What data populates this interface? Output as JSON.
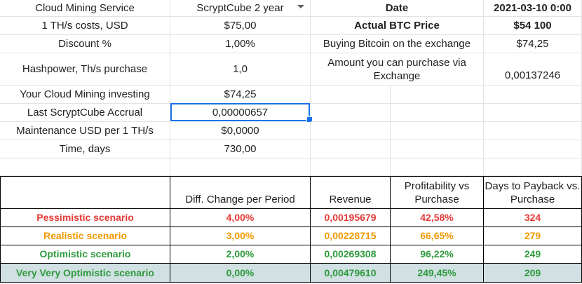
{
  "colors": {
    "pessimistic": "#e53935",
    "realistic": "#f29900",
    "optimistic": "#2e9a3c",
    "highlight_row": "#d0e0e3",
    "selection": "#1a73e8"
  },
  "left_table": [
    {
      "label": "Cloud Mining Service",
      "value": "ScryptCube 2 year",
      "dropdown": true
    },
    {
      "label": "1 TH/s costs, USD",
      "value": "$75,00"
    },
    {
      "label": "Discount %",
      "value": "1,00%"
    },
    {
      "label": "Hashpower, Th/s purchase",
      "value": "1,0"
    },
    {
      "label": "Your Cloud Mining investing",
      "value": "$74,25"
    },
    {
      "label": "Last ScryptCube Accrual",
      "value": "0,00000657",
      "selected": true
    },
    {
      "label": "Maintenance USD per 1 TH/s",
      "value": "$0,0000"
    },
    {
      "label": "Time, days",
      "value": "730,00"
    }
  ],
  "right_table": [
    {
      "label": "Date",
      "value": "2021-03-10 0:00"
    },
    {
      "label": "Actual BTC Price",
      "value": "$54 100"
    },
    {
      "label": "Buying Bitcoin on the exchange",
      "value": "$74,25"
    },
    {
      "label": "Amount you can purchase via Exchange",
      "value": "0,00137246"
    }
  ],
  "scenario_headers": [
    "Diff. Change per Period",
    "Revenue",
    "Profitability vs Purchase",
    "Days to Payback vs. Purchase"
  ],
  "scenarios": [
    {
      "name": "Pessimistic scenario",
      "diff": "4,00%",
      "revenue": "0,00195679",
      "profit": "42,58%",
      "days": "324"
    },
    {
      "name": "Realistic scenario",
      "diff": "3,00%",
      "revenue": "0,00228715",
      "profit": "66,65%",
      "days": "279"
    },
    {
      "name": "Optimistic scenario",
      "diff": "2,00%",
      "revenue": "0,00269308",
      "profit": "96,22%",
      "days": "249"
    },
    {
      "name": "Very Very Optimistic scenario",
      "diff": "0,00%",
      "revenue": "0,00479610",
      "profit": "249,45%",
      "days": "209"
    }
  ]
}
